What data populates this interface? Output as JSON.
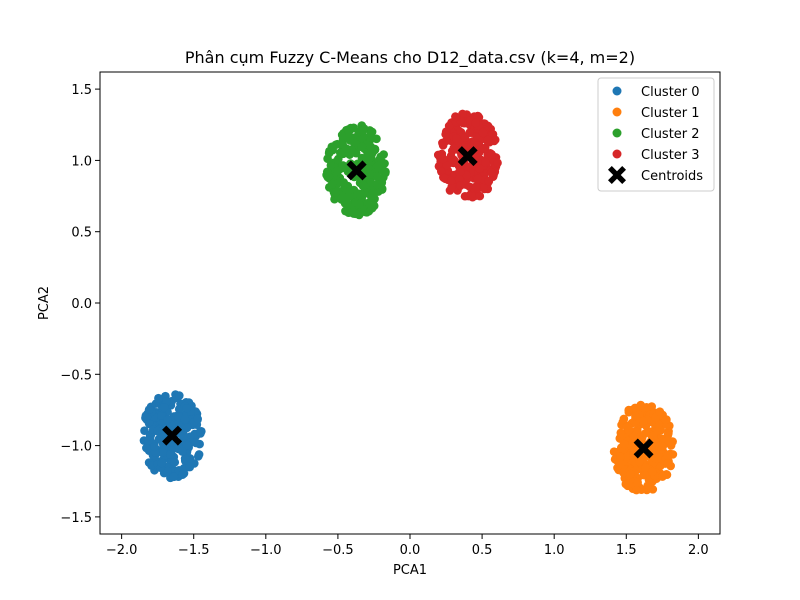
{
  "chart_data": {
    "type": "scatter",
    "title": "Phân cụm Fuzzy C-Means cho D12_data.csv (k=4, m=2)",
    "xlabel": "PCA1",
    "ylabel": "PCA2",
    "xlim": [
      -2.15,
      2.15
    ],
    "ylim": [
      -1.62,
      1.62
    ],
    "xticks": [
      -2.0,
      -1.5,
      -1.0,
      -0.5,
      0.0,
      0.5,
      1.0,
      1.5,
      2.0
    ],
    "xtick_labels": [
      "−2.0",
      "−1.5",
      "−1.0",
      "−0.5",
      "0.0",
      "0.5",
      "1.0",
      "1.5",
      "2.0"
    ],
    "yticks": [
      -1.5,
      -1.0,
      -0.5,
      0.0,
      0.5,
      1.0,
      1.5
    ],
    "ytick_labels": [
      "−1.5",
      "−1.0",
      "−0.5",
      "0.0",
      "0.5",
      "1.0",
      "1.5"
    ],
    "grid": false,
    "legend_position": "top-right",
    "series": [
      {
        "name": "Cluster 0",
        "color": "#1f77b4",
        "center": [
          -1.65,
          -0.93
        ],
        "spread": [
          0.21,
          0.3
        ],
        "point_count": 250,
        "seed": 11
      },
      {
        "name": "Cluster 1",
        "color": "#ff7f0e",
        "center": [
          1.62,
          -1.02
        ],
        "spread": [
          0.21,
          0.31
        ],
        "point_count": 250,
        "seed": 23
      },
      {
        "name": "Cluster 2",
        "color": "#2ca02c",
        "center": [
          -0.37,
          0.93
        ],
        "spread": [
          0.21,
          0.32
        ],
        "point_count": 250,
        "seed": 37
      },
      {
        "name": "Cluster 3",
        "color": "#d62728",
        "center": [
          0.4,
          1.03
        ],
        "spread": [
          0.21,
          0.31
        ],
        "point_count": 250,
        "seed": 53
      }
    ],
    "centroids": {
      "name": "Centroids",
      "color": "#000000",
      "marker": "X",
      "points": [
        {
          "x": -1.65,
          "y": -0.93
        },
        {
          "x": 1.62,
          "y": -1.02
        },
        {
          "x": -0.37,
          "y": 0.93
        },
        {
          "x": 0.4,
          "y": 1.03
        }
      ]
    }
  }
}
